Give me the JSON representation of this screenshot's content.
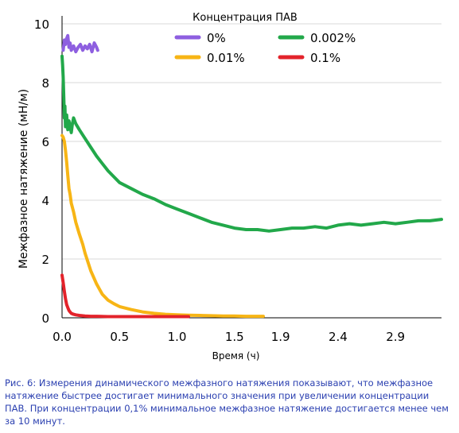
{
  "chart_data": {
    "type": "line",
    "title": "",
    "xlabel": "Время (ч)",
    "ylabel": "Межфазное натяжение (мН/м)",
    "xlim": [
      0,
      3.3
    ],
    "ylim": [
      0,
      10
    ],
    "x_ticks": [
      0.0,
      0.5,
      1.0,
      1.5,
      1.9,
      2.4,
      2.9
    ],
    "x_tick_labels": [
      "0.0",
      "0.5",
      "1.0",
      "1.5",
      "1.9",
      "2.4",
      "2.9"
    ],
    "y_ticks": [
      0,
      2,
      4,
      6,
      8,
      10
    ],
    "y_tick_labels": [
      "0",
      "2",
      "4",
      "6",
      "8",
      "10"
    ],
    "grid": "horizontal",
    "legend": {
      "title": "Концентрация ПАВ",
      "placement": "top"
    },
    "series": [
      {
        "name": "0%",
        "color": "#8e5fe0",
        "x": [
          0.01,
          0.02,
          0.03,
          0.04,
          0.05,
          0.06,
          0.07,
          0.08,
          0.1,
          0.12,
          0.14,
          0.16,
          0.18,
          0.2,
          0.22,
          0.24,
          0.26,
          0.28,
          0.3,
          0.31
        ],
        "y": [
          9.1,
          9.45,
          9.3,
          9.5,
          9.6,
          9.2,
          9.35,
          9.1,
          9.25,
          9.05,
          9.2,
          9.3,
          9.1,
          9.25,
          9.15,
          9.3,
          9.05,
          9.35,
          9.2,
          9.1
        ]
      },
      {
        "name": "0.002%",
        "color": "#22a84a",
        "x": [
          0.0,
          0.005,
          0.01,
          0.015,
          0.02,
          0.025,
          0.03,
          0.04,
          0.05,
          0.06,
          0.07,
          0.08,
          0.09,
          0.1,
          0.12,
          0.15,
          0.2,
          0.25,
          0.3,
          0.35,
          0.4,
          0.45,
          0.5,
          0.6,
          0.7,
          0.8,
          0.9,
          1.0,
          1.1,
          1.2,
          1.3,
          1.4,
          1.5,
          1.6,
          1.7,
          1.8,
          1.9,
          2.0,
          2.1,
          2.2,
          2.3,
          2.4,
          2.5,
          2.6,
          2.7,
          2.8,
          2.9,
          3.0,
          3.1,
          3.2,
          3.3
        ],
        "y": [
          8.9,
          8.6,
          8.2,
          7.5,
          6.8,
          7.2,
          6.5,
          6.9,
          6.4,
          6.7,
          6.5,
          6.3,
          6.6,
          6.8,
          6.6,
          6.4,
          6.1,
          5.8,
          5.5,
          5.25,
          5.0,
          4.8,
          4.6,
          4.4,
          4.2,
          4.05,
          3.85,
          3.7,
          3.55,
          3.4,
          3.25,
          3.15,
          3.05,
          3.0,
          3.0,
          2.95,
          3.0,
          3.05,
          3.05,
          3.1,
          3.05,
          3.15,
          3.2,
          3.15,
          3.2,
          3.25,
          3.2,
          3.25,
          3.3,
          3.3,
          3.35
        ]
      },
      {
        "name": "0.01%",
        "color": "#f7b515",
        "x": [
          0.0,
          0.01,
          0.02,
          0.03,
          0.04,
          0.05,
          0.06,
          0.07,
          0.08,
          0.1,
          0.12,
          0.15,
          0.18,
          0.2,
          0.25,
          0.3,
          0.35,
          0.4,
          0.45,
          0.5,
          0.6,
          0.7,
          0.8,
          0.9,
          1.0,
          1.1,
          1.2,
          1.3,
          1.4,
          1.5,
          1.6,
          1.7,
          1.75
        ],
        "y": [
          6.2,
          6.15,
          6.0,
          5.7,
          5.3,
          4.85,
          4.4,
          4.2,
          3.9,
          3.6,
          3.25,
          2.85,
          2.5,
          2.2,
          1.6,
          1.15,
          0.8,
          0.6,
          0.48,
          0.38,
          0.28,
          0.2,
          0.15,
          0.12,
          0.1,
          0.09,
          0.08,
          0.07,
          0.06,
          0.06,
          0.05,
          0.05,
          0.05
        ]
      },
      {
        "name": "0.1%",
        "color": "#e3232b",
        "x": [
          0.0,
          0.01,
          0.02,
          0.03,
          0.04,
          0.05,
          0.06,
          0.07,
          0.08,
          0.1,
          0.12,
          0.15,
          0.2,
          0.25,
          0.3,
          0.4,
          0.5,
          0.6,
          0.7,
          0.8,
          0.9,
          1.0,
          1.1
        ],
        "y": [
          1.45,
          1.2,
          0.9,
          0.65,
          0.45,
          0.35,
          0.25,
          0.2,
          0.15,
          0.12,
          0.1,
          0.08,
          0.06,
          0.05,
          0.05,
          0.04,
          0.04,
          0.04,
          0.04,
          0.04,
          0.04,
          0.04,
          0.04
        ]
      }
    ]
  },
  "caption": {
    "text": "Рис. 6: Измерения динамического межфазного натяжения показывают, что межфазное натяжение быстрее достигает минимального значения при увеличении концентрации ПАВ. При концентрации 0,1% минимальное межфазное натяжение достигается менее чем за 10 минут."
  }
}
